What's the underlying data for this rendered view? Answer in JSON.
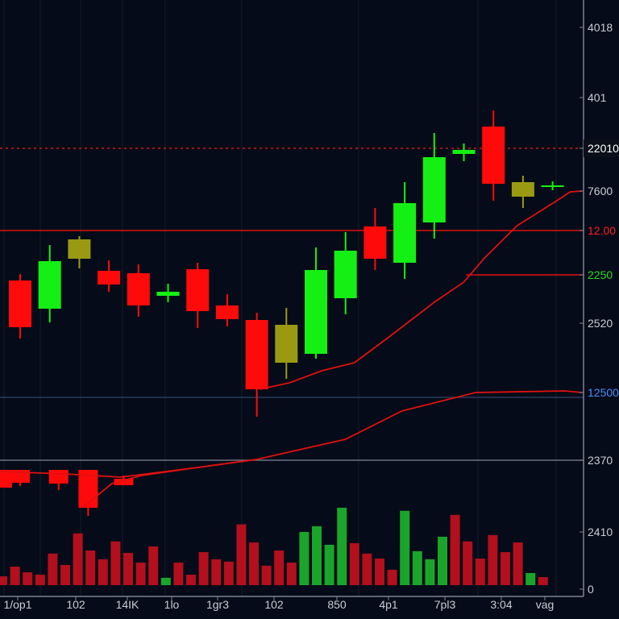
{
  "chart_data": {
    "type": "candlestick",
    "title": "",
    "colors": {
      "background": "#050b18",
      "up": "#14f014",
      "down": "#ff0a0a",
      "neutral": "#9a9a12",
      "volume_up": "#1aa52a",
      "volume_down": "#b30f1d",
      "ma": "#e01010",
      "grid": "#141c2c",
      "axis": "#7a8494",
      "label": "#c8ccd4"
    },
    "price_range": [
      -120,
      600
    ],
    "candles": [
      {
        "o": 252,
        "h": 260,
        "l": 180,
        "c": 194,
        "color": "down"
      },
      {
        "o": 217,
        "h": 296,
        "l": 200,
        "c": 276,
        "color": "up"
      },
      {
        "o": 279,
        "h": 307,
        "l": 267,
        "c": 303,
        "color": "neutral"
      },
      {
        "o": 264,
        "h": 277,
        "l": 238,
        "c": 247,
        "color": "down"
      },
      {
        "o": 261,
        "h": 272,
        "l": 207,
        "c": 221,
        "color": "down"
      },
      {
        "o": 233,
        "h": 248,
        "l": 225,
        "c": 238,
        "color": "up"
      },
      {
        "o": 266,
        "h": 274,
        "l": 193,
        "c": 214,
        "color": "down"
      },
      {
        "o": 221,
        "h": 235,
        "l": 195,
        "c": 204,
        "color": "down"
      },
      {
        "o": 203,
        "h": 212,
        "l": 83,
        "c": 117,
        "color": "down"
      },
      {
        "o": 150,
        "h": 218,
        "l": 130,
        "c": 197,
        "color": "neutral"
      },
      {
        "o": 161,
        "h": 293,
        "l": 155,
        "c": 265,
        "color": "up"
      },
      {
        "o": 230,
        "h": 312,
        "l": 210,
        "c": 289,
        "color": "up"
      },
      {
        "o": 319,
        "h": 342,
        "l": 265,
        "c": 279,
        "color": "down"
      },
      {
        "o": 274,
        "h": 374,
        "l": 254,
        "c": 348,
        "color": "up"
      },
      {
        "o": 324,
        "h": 435,
        "l": 304,
        "c": 405,
        "color": "up"
      },
      {
        "o": 409,
        "h": 422,
        "l": 400,
        "c": 414,
        "color": "up"
      },
      {
        "o": 443,
        "h": 463,
        "l": 351,
        "c": 372,
        "color": "down"
      },
      {
        "o": 356,
        "h": 382,
        "l": 342,
        "c": 374,
        "color": "neutral"
      },
      {
        "o": 368,
        "h": 375,
        "l": 364,
        "c": 370,
        "color": "up"
      }
    ],
    "lower_candles": [
      {
        "i": -0.6,
        "o": 17,
        "h": 17,
        "l": -5,
        "c": -5
      },
      {
        "i": 0,
        "o": 17,
        "h": 17,
        "l": -3,
        "c": 1
      },
      {
        "i": 1.3,
        "o": 17,
        "h": 17,
        "l": -8,
        "c": 0
      },
      {
        "i": 2.3,
        "o": 17,
        "h": 17,
        "l": -40,
        "c": -30
      },
      {
        "i": 3.5,
        "o": 6,
        "h": 10,
        "l": -2,
        "c": -2
      }
    ],
    "moving_averages": [
      {
        "name": "ma-fast",
        "points": [
          [
            8.1,
            117
          ],
          [
            9.1,
            125
          ],
          [
            10.2,
            140
          ],
          [
            11.3,
            150
          ],
          [
            12.4,
            180
          ],
          [
            14,
            225
          ],
          [
            15,
            250
          ],
          [
            15.7,
            280
          ],
          [
            16.8,
            320
          ],
          [
            18.1,
            350
          ],
          [
            18.6,
            362
          ],
          [
            19.0,
            363
          ]
        ]
      },
      {
        "name": "ma-slow",
        "points": [
          [
            -0.7,
            15
          ],
          [
            1.5,
            12
          ],
          [
            3.4,
            8
          ],
          [
            6,
            20
          ],
          [
            8.0,
            30
          ],
          [
            11,
            55
          ],
          [
            12.9,
            90
          ],
          [
            15.4,
            113
          ],
          [
            18.4,
            115
          ],
          [
            19.0,
            113
          ]
        ]
      },
      {
        "name": "ma-lower",
        "points": [
          [
            2.1,
            -30
          ],
          [
            3.1,
            0
          ],
          [
            4.1,
            10
          ],
          [
            6,
            20
          ],
          [
            8.0,
            30
          ]
        ]
      }
    ],
    "levels": [
      {
        "price": 416,
        "style": "dotted",
        "color": "#d01818"
      },
      {
        "price": 314,
        "style": "solid",
        "color": "#e01010"
      },
      {
        "price": 259,
        "style": "solid",
        "color": "#e01010",
        "from_index": 15.07
      },
      {
        "price": 107,
        "style": "solid",
        "color": "#2a3a5a"
      },
      {
        "price": 29,
        "style": "solid",
        "color": "#6a7484"
      }
    ],
    "volume": {
      "ylim": [
        0,
        2500
      ],
      "bars": [
        {
          "v": 370,
          "color": "down"
        },
        {
          "v": 780,
          "color": "down"
        },
        {
          "v": 540,
          "color": "down"
        },
        {
          "v": 440,
          "color": "down"
        },
        {
          "v": 1330,
          "color": "down"
        },
        {
          "v": 850,
          "color": "down"
        },
        {
          "v": 2180,
          "color": "down"
        },
        {
          "v": 1460,
          "color": "down"
        },
        {
          "v": 1090,
          "color": "down"
        },
        {
          "v": 1840,
          "color": "down"
        },
        {
          "v": 1360,
          "color": "down"
        },
        {
          "v": 950,
          "color": "down"
        },
        {
          "v": 1630,
          "color": "down"
        },
        {
          "v": 310,
          "color": "up"
        },
        {
          "v": 950,
          "color": "down"
        },
        {
          "v": 440,
          "color": "down"
        },
        {
          "v": 1390,
          "color": "down"
        },
        {
          "v": 1090,
          "color": "down"
        },
        {
          "v": 990,
          "color": "down"
        },
        {
          "v": 2560,
          "color": "down"
        },
        {
          "v": 1800,
          "color": "down"
        },
        {
          "v": 820,
          "color": "down"
        },
        {
          "v": 1460,
          "color": "down"
        },
        {
          "v": 950,
          "color": "down"
        },
        {
          "v": 2240,
          "color": "up"
        },
        {
          "v": 2480,
          "color": "up"
        },
        {
          "v": 1700,
          "color": "up"
        },
        {
          "v": 3260,
          "color": "up"
        },
        {
          "v": 1770,
          "color": "down"
        },
        {
          "v": 1330,
          "color": "down"
        },
        {
          "v": 1120,
          "color": "down"
        },
        {
          "v": 650,
          "color": "down"
        },
        {
          "v": 3130,
          "color": "up"
        },
        {
          "v": 1430,
          "color": "up"
        },
        {
          "v": 1090,
          "color": "up"
        },
        {
          "v": 2040,
          "color": "up"
        },
        {
          "v": 2960,
          "color": "down"
        },
        {
          "v": 1840,
          "color": "down"
        },
        {
          "v": 1120,
          "color": "down"
        },
        {
          "v": 2110,
          "color": "down"
        },
        {
          "v": 1390,
          "color": "down"
        },
        {
          "v": 1800,
          "color": "down"
        },
        {
          "v": 510,
          "color": "up"
        },
        {
          "v": 340,
          "color": "down"
        }
      ]
    },
    "y_tick_labels": [
      {
        "text": "4018",
        "style": "normal"
      },
      {
        "text": "401",
        "style": "normal"
      },
      {
        "text": "22010",
        "style": "highlight"
      },
      {
        "text": "7600",
        "style": "normal"
      },
      {
        "text": "12.00",
        "style": "red"
      },
      {
        "text": "2250",
        "style": "green"
      },
      {
        "text": "2520",
        "style": "normal"
      },
      {
        "text": "12500",
        "style": "blue"
      },
      {
        "text": "2370",
        "style": "normal"
      },
      {
        "text": "2410",
        "style": "normal"
      },
      {
        "text": "0",
        "style": "normal"
      }
    ],
    "x_tick_labels": [
      "1/op1",
      "102",
      "14IK",
      "1lo",
      "1gr3",
      "102",
      "850",
      "4p1",
      "7pl3",
      "3:04",
      "vag"
    ]
  }
}
